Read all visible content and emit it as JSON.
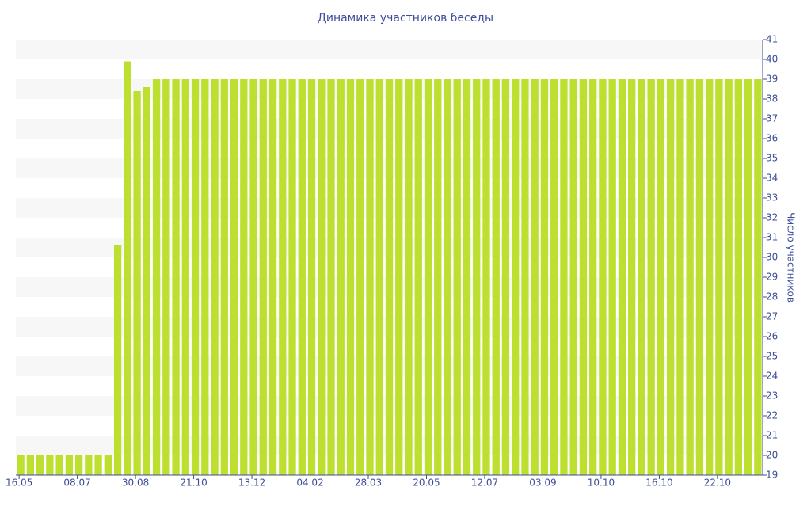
{
  "chart_data": {
    "type": "bar",
    "title": "Динамика участников беседы",
    "y_axis_label": "Число участников",
    "categories": [
      "16.05",
      null,
      null,
      null,
      null,
      null,
      "08.07",
      null,
      null,
      null,
      null,
      null,
      "30.08",
      null,
      null,
      null,
      null,
      null,
      "21.10",
      null,
      null,
      null,
      null,
      null,
      "13.12",
      null,
      null,
      null,
      null,
      null,
      "04.02",
      null,
      null,
      null,
      null,
      null,
      "28.03",
      null,
      null,
      null,
      null,
      null,
      "20.05",
      null,
      null,
      null,
      null,
      null,
      "12.07",
      null,
      null,
      null,
      null,
      null,
      "03.09",
      null,
      null,
      null,
      null,
      null,
      "10.10",
      null,
      null,
      null,
      null,
      null,
      "16.10",
      null,
      null,
      null,
      null,
      null,
      "22.10",
      null,
      null,
      null,
      null
    ],
    "values": [
      20,
      20,
      20,
      20,
      20,
      20,
      20,
      20,
      20,
      20,
      30.6,
      39.9,
      38.4,
      38.6,
      39,
      39,
      39,
      39,
      39,
      39,
      39,
      39,
      39,
      39,
      39,
      39,
      39,
      39,
      39,
      39,
      39,
      39,
      39,
      39,
      39,
      39,
      39,
      39,
      39,
      39,
      39,
      39,
      39,
      39,
      39,
      39,
      39,
      39,
      39,
      39,
      39,
      39,
      39,
      39,
      39,
      39,
      39,
      39,
      39,
      39,
      39,
      39,
      39,
      39,
      39,
      39,
      39,
      39,
      39,
      39,
      39,
      39,
      39,
      39,
      39,
      39,
      39
    ],
    "color": "#bde030",
    "ylim": [
      19,
      41
    ],
    "yticks": [
      19,
      20,
      21,
      22,
      23,
      24,
      25,
      26,
      27,
      28,
      29,
      30,
      31,
      32,
      33,
      34,
      35,
      36,
      37,
      38,
      39,
      40,
      41
    ],
    "y_axis_side": "right",
    "bands": true
  }
}
